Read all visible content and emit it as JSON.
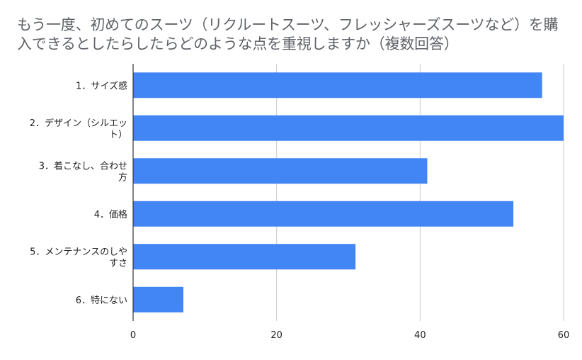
{
  "chart_data": {
    "type": "bar",
    "orientation": "horizontal",
    "title": "もう一度、初めてのスーツ（リクルートスーツ、フレッシャーズスーツなど）を購入できるとしたらしたらどのような点を重視しますか（複数回答）",
    "categories": [
      [
        "1．サイズ感"
      ],
      [
        "2．デザイン（シルエッ",
        "ト）"
      ],
      [
        "3．着こなし、合わせ",
        "方"
      ],
      [
        "4．価格"
      ],
      [
        "5．メンテナンスのしや",
        "すさ"
      ],
      [
        "6．特にない"
      ]
    ],
    "values": [
      57,
      60,
      41,
      53,
      31,
      7
    ],
    "xlim": [
      0,
      60
    ],
    "xticks": [
      "0",
      "20",
      "40",
      "60"
    ],
    "xtick_values": [
      0,
      20,
      40,
      60
    ],
    "grid": true,
    "xlabel": "",
    "ylabel": "",
    "bar_color": "#4285f4",
    "grid_color": "#cccccc",
    "axis_color": "#333333"
  }
}
